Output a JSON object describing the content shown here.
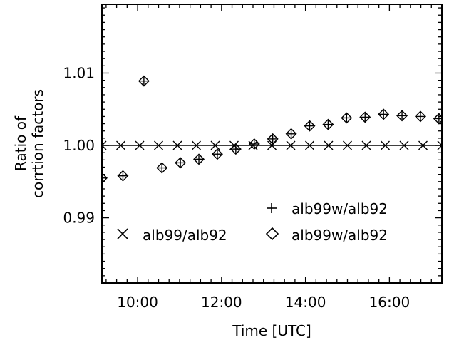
{
  "chart_data": {
    "type": "scatter",
    "xlabel": "Time [UTC]",
    "ylabel_lines": [
      "Ratio of",
      "corrtion factors"
    ],
    "xlim": [
      9.15,
      17.25
    ],
    "ylim": [
      0.981,
      1.0195
    ],
    "x_ticks": [
      {
        "value": 10,
        "label": "10:00"
      },
      {
        "value": 12,
        "label": "12:00"
      },
      {
        "value": 14,
        "label": "14:00"
      },
      {
        "value": 16,
        "label": "16:00"
      }
    ],
    "y_ticks": [
      {
        "value": 0.99,
        "label": "0.99"
      },
      {
        "value": 1.0,
        "label": "1.00"
      },
      {
        "value": 1.01,
        "label": "1.01"
      }
    ],
    "reference_line": 1.0,
    "series": [
      {
        "name": "alb99/alb92",
        "marker": "x",
        "points": [
          [
            9.15,
            1.0
          ],
          [
            9.6,
            1.0
          ],
          [
            10.05,
            1.0
          ],
          [
            10.5,
            1.0
          ],
          [
            10.95,
            1.0
          ],
          [
            11.4,
            1.0
          ],
          [
            11.85,
            1.0
          ],
          [
            12.3,
            1.0
          ],
          [
            12.75,
            1.0
          ],
          [
            13.2,
            1.0
          ],
          [
            13.65,
            1.0
          ],
          [
            14.1,
            1.0
          ],
          [
            14.55,
            1.0
          ],
          [
            15.0,
            1.0
          ],
          [
            15.45,
            1.0
          ],
          [
            15.9,
            1.0
          ],
          [
            16.35,
            1.0
          ],
          [
            16.8,
            1.0
          ],
          [
            17.25,
            1.0
          ]
        ]
      },
      {
        "name": "alb99w/alb92",
        "marker": "plus",
        "points": [
          [
            9.15,
            0.9955
          ],
          [
            9.65,
            0.9958
          ],
          [
            10.15,
            1.0089
          ],
          [
            10.58,
            0.9969
          ],
          [
            11.02,
            0.9976
          ],
          [
            11.46,
            0.9981
          ],
          [
            11.9,
            0.9988
          ],
          [
            12.34,
            0.9995
          ],
          [
            12.78,
            1.0002
          ],
          [
            13.22,
            1.0009
          ],
          [
            13.66,
            1.0016
          ],
          [
            14.1,
            1.0027
          ],
          [
            14.54,
            1.0029
          ],
          [
            14.98,
            1.0038
          ],
          [
            15.42,
            1.0039
          ],
          [
            15.86,
            1.0043
          ],
          [
            16.3,
            1.0041
          ],
          [
            16.74,
            1.004
          ],
          [
            17.18,
            1.0037
          ]
        ]
      },
      {
        "name": "alb99w/alb92",
        "marker": "diamond",
        "points": [
          [
            9.15,
            0.9955
          ],
          [
            9.65,
            0.9958
          ],
          [
            10.15,
            1.0089
          ],
          [
            10.58,
            0.9969
          ],
          [
            11.02,
            0.9976
          ],
          [
            11.46,
            0.9981
          ],
          [
            11.9,
            0.9988
          ],
          [
            12.34,
            0.9995
          ],
          [
            12.78,
            1.0002
          ],
          [
            13.22,
            1.0009
          ],
          [
            13.66,
            1.0016
          ],
          [
            14.1,
            1.0027
          ],
          [
            14.54,
            1.0029
          ],
          [
            14.98,
            1.0038
          ],
          [
            15.42,
            1.0039
          ],
          [
            15.86,
            1.0043
          ],
          [
            16.3,
            1.0041
          ],
          [
            16.74,
            1.004
          ],
          [
            17.18,
            1.0037
          ]
        ]
      }
    ],
    "legend": [
      {
        "marker": "plus",
        "label": "alb99w/alb92"
      },
      {
        "marker": "x",
        "label": "alb99/alb92"
      },
      {
        "marker": "diamond",
        "label": "alb99w/alb92"
      }
    ]
  }
}
